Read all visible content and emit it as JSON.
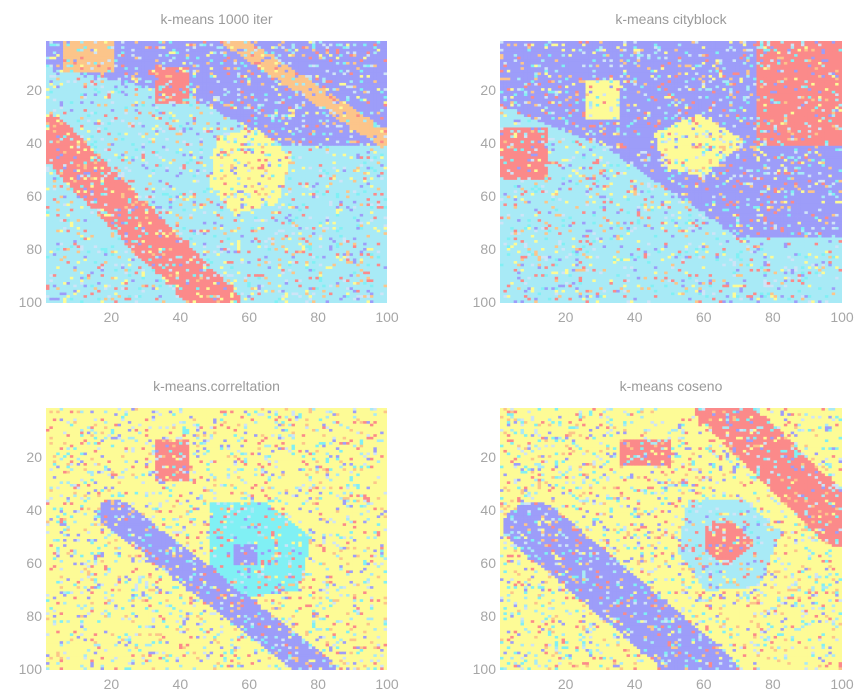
{
  "colors": {
    "class_colors": [
      "#fb8a8a",
      "#9d9df9",
      "#a8eaf6",
      "#fdfb96",
      "#fcc58a",
      "#cfe4f7",
      "#80f0f4"
    ],
    "tick_label": "#a6a6a6",
    "title": "#9a9a9a"
  },
  "chart_data": [
    {
      "type": "heatmap",
      "title": "k-means 1000 iter",
      "xlim": [
        1,
        100
      ],
      "ylim": [
        1,
        100
      ],
      "xticks": [
        "20",
        "40",
        "60",
        "80",
        "100"
      ],
      "yticks": [
        "20",
        "40",
        "60",
        "80",
        "100"
      ],
      "y_reversed": true,
      "grid": false,
      "regions": [
        {
          "class": 2,
          "shape": "background"
        },
        {
          "class": 1,
          "shape": "polygon",
          "points": [
            [
              0,
              0
            ],
            [
              100,
              0
            ],
            [
              100,
              40
            ],
            [
              70,
              40
            ],
            [
              40,
              20
            ],
            [
              0,
              10
            ]
          ]
        },
        {
          "class": 4,
          "shape": "band",
          "points": [
            [
              55,
              0
            ],
            [
              100,
              38
            ]
          ],
          "width": 6
        },
        {
          "class": 0,
          "shape": "band",
          "points": [
            [
              0,
              35
            ],
            [
              50,
              100
            ]
          ],
          "width": 14
        },
        {
          "class": 3,
          "shape": "polygon",
          "points": [
            [
              50,
              37
            ],
            [
              62,
              33
            ],
            [
              72,
              45
            ],
            [
              68,
              62
            ],
            [
              55,
              66
            ],
            [
              48,
              55
            ]
          ]
        },
        {
          "class": 0,
          "shape": "rect",
          "points": [
            [
              32,
              10
            ],
            [
              42,
              24
            ]
          ]
        },
        {
          "class": 4,
          "shape": "rect",
          "points": [
            [
              5,
              0
            ],
            [
              20,
              12
            ]
          ]
        }
      ]
    },
    {
      "type": "heatmap",
      "title": "k-means cityblock",
      "xlim": [
        1,
        100
      ],
      "ylim": [
        1,
        100
      ],
      "xticks": [
        "20",
        "40",
        "60",
        "80",
        "100"
      ],
      "yticks": [
        "20",
        "40",
        "60",
        "80",
        "100"
      ],
      "y_reversed": true,
      "grid": false,
      "regions": [
        {
          "class": 2,
          "shape": "background"
        },
        {
          "class": 1,
          "shape": "polygon",
          "points": [
            [
              0,
              0
            ],
            [
              100,
              0
            ],
            [
              100,
              75
            ],
            [
              70,
              75
            ],
            [
              30,
              40
            ],
            [
              0,
              25
            ]
          ]
        },
        {
          "class": 0,
          "shape": "rect",
          "points": [
            [
              0,
              33
            ],
            [
              14,
              53
            ]
          ]
        },
        {
          "class": 0,
          "shape": "rect",
          "points": [
            [
              75,
              0
            ],
            [
              100,
              40
            ]
          ]
        },
        {
          "class": 3,
          "shape": "polygon",
          "points": [
            [
              45,
              35
            ],
            [
              58,
              28
            ],
            [
              72,
              38
            ],
            [
              60,
              52
            ],
            [
              48,
              48
            ]
          ]
        },
        {
          "class": 3,
          "shape": "rect",
          "points": [
            [
              25,
              15
            ],
            [
              35,
              30
            ]
          ]
        }
      ]
    },
    {
      "type": "heatmap",
      "title": "k-means.correltation",
      "xlim": [
        1,
        100
      ],
      "ylim": [
        1,
        100
      ],
      "xticks": [
        "20",
        "40",
        "60",
        "80",
        "100"
      ],
      "yticks": [
        "20",
        "40",
        "60",
        "80",
        "100"
      ],
      "y_reversed": true,
      "grid": false,
      "regions": [
        {
          "class": 3,
          "shape": "background"
        },
        {
          "class": 1,
          "shape": "band",
          "points": [
            [
              20,
              40
            ],
            [
              80,
              100
            ]
          ],
          "width": 10
        },
        {
          "class": 6,
          "shape": "polygon",
          "points": [
            [
              48,
              36
            ],
            [
              65,
              36
            ],
            [
              78,
              50
            ],
            [
              74,
              70
            ],
            [
              58,
              72
            ],
            [
              48,
              60
            ]
          ]
        },
        {
          "class": 1,
          "shape": "rect",
          "points": [
            [
              55,
              52
            ],
            [
              62,
              60
            ]
          ]
        },
        {
          "class": 0,
          "shape": "rect",
          "points": [
            [
              32,
              12
            ],
            [
              42,
              28
            ]
          ]
        }
      ]
    },
    {
      "type": "heatmap",
      "title": "k-means coseno",
      "xlim": [
        1,
        100
      ],
      "ylim": [
        1,
        100
      ],
      "xticks": [
        "20",
        "40",
        "60",
        "80",
        "100"
      ],
      "yticks": [
        "20",
        "40",
        "60",
        "80",
        "100"
      ],
      "y_reversed": true,
      "grid": false,
      "regions": [
        {
          "class": 3,
          "shape": "background"
        },
        {
          "class": 0,
          "shape": "band",
          "points": [
            [
              65,
              0
            ],
            [
              100,
              45
            ]
          ],
          "width": 16
        },
        {
          "class": 1,
          "shape": "band",
          "points": [
            [
              10,
              45
            ],
            [
              60,
              100
            ]
          ],
          "width": 18
        },
        {
          "class": 2,
          "shape": "polygon",
          "points": [
            [
              55,
              35
            ],
            [
              72,
              35
            ],
            [
              82,
              48
            ],
            [
              76,
              68
            ],
            [
              60,
              70
            ],
            [
              52,
              55
            ]
          ]
        },
        {
          "class": 0,
          "shape": "polygon",
          "points": [
            [
              60,
              45
            ],
            [
              68,
              43
            ],
            [
              75,
              52
            ],
            [
              66,
              60
            ],
            [
              60,
              55
            ]
          ]
        },
        {
          "class": 0,
          "shape": "rect",
          "points": [
            [
              35,
              12
            ],
            [
              50,
              22
            ]
          ]
        }
      ]
    }
  ]
}
